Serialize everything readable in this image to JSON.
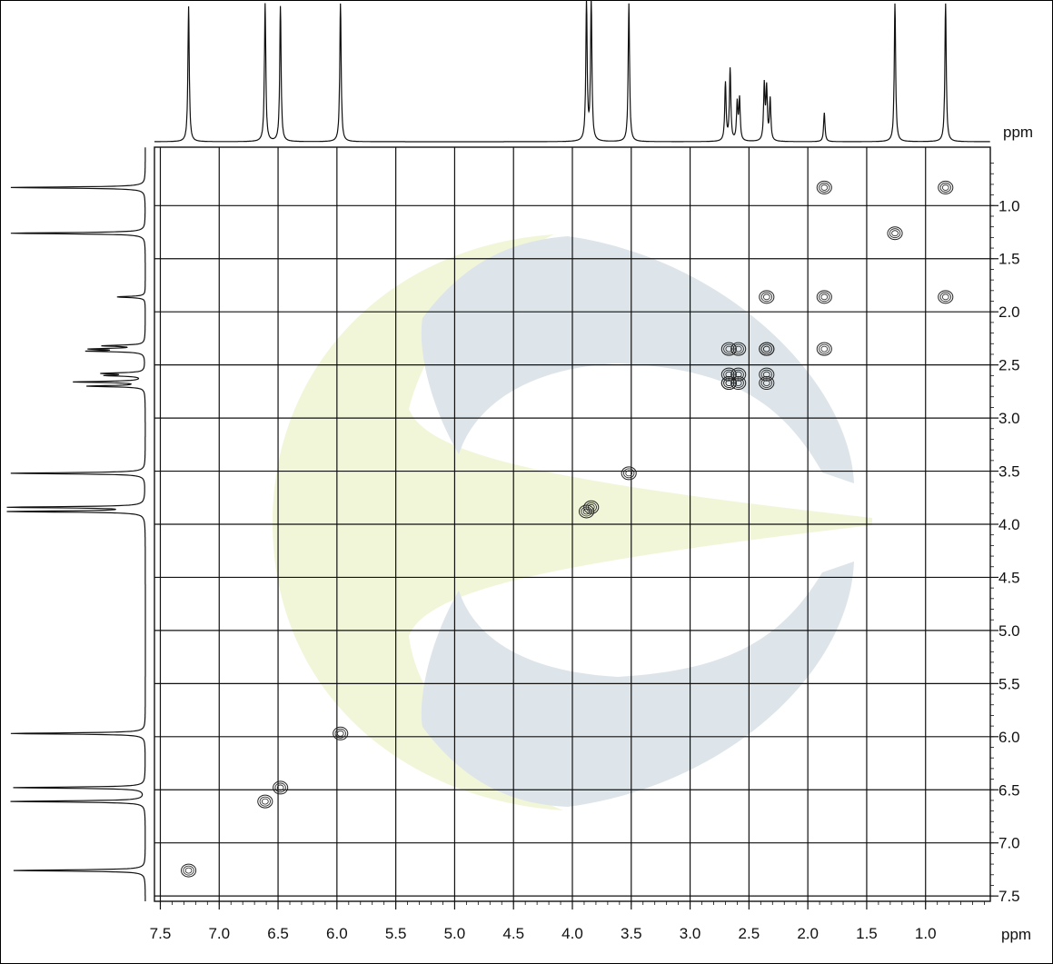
{
  "chart_data": {
    "type": "contour",
    "x": {
      "label": "ppm",
      "ticks": [
        7.5,
        7.0,
        6.5,
        6.0,
        5.5,
        5.0,
        4.5,
        4.0,
        3.5,
        3.0,
        2.5,
        2.0,
        1.5,
        1.0
      ],
      "range": [
        7.55,
        0.45
      ]
    },
    "y": {
      "label": "ppm",
      "ticks": [
        1.0,
        1.5,
        2.0,
        2.5,
        3.0,
        3.5,
        4.0,
        4.5,
        5.0,
        5.5,
        6.0,
        6.5,
        7.0,
        7.5
      ],
      "range": [
        0.45,
        7.55
      ]
    },
    "grid": true,
    "diagonal_peaks": [
      {
        "x": 7.26,
        "y": 7.26
      },
      {
        "x": 6.61,
        "y": 6.61
      },
      {
        "x": 6.48,
        "y": 6.48
      },
      {
        "x": 5.97,
        "y": 5.97
      },
      {
        "x": 3.88,
        "y": 3.88
      },
      {
        "x": 3.84,
        "y": 3.84
      },
      {
        "x": 3.52,
        "y": 3.52
      },
      {
        "x": 2.67,
        "y": 2.67
      },
      {
        "x": 2.59,
        "y": 2.59
      },
      {
        "x": 2.35,
        "y": 2.35
      },
      {
        "x": 1.86,
        "y": 1.86
      },
      {
        "x": 1.26,
        "y": 1.26
      },
      {
        "x": 0.83,
        "y": 0.83
      }
    ],
    "cross_peaks": [
      {
        "x": 1.86,
        "y": 0.83
      },
      {
        "x": 0.83,
        "y": 1.86
      },
      {
        "x": 2.35,
        "y": 1.86
      },
      {
        "x": 1.86,
        "y": 2.35
      },
      {
        "x": 2.35,
        "y": 2.35
      },
      {
        "x": 2.59,
        "y": 2.35
      },
      {
        "x": 2.67,
        "y": 2.35
      },
      {
        "x": 2.67,
        "y": 2.59
      },
      {
        "x": 2.67,
        "y": 2.67
      },
      {
        "x": 2.59,
        "y": 2.67
      },
      {
        "x": 2.35,
        "y": 2.59
      },
      {
        "x": 2.35,
        "y": 2.67
      }
    ],
    "projection_1d_peaks": [
      {
        "ppm": 7.26,
        "intensity": 0.98
      },
      {
        "ppm": 6.61,
        "intensity": 1.0
      },
      {
        "ppm": 6.48,
        "intensity": 0.98
      },
      {
        "ppm": 5.97,
        "intensity": 1.0
      },
      {
        "ppm": 3.88,
        "intensity": 1.0
      },
      {
        "ppm": 3.84,
        "intensity": 1.0
      },
      {
        "ppm": 3.52,
        "intensity": 1.0
      },
      {
        "ppm": 2.7,
        "intensity": 0.42
      },
      {
        "ppm": 2.66,
        "intensity": 0.52
      },
      {
        "ppm": 2.6,
        "intensity": 0.27
      },
      {
        "ppm": 2.58,
        "intensity": 0.3
      },
      {
        "ppm": 2.37,
        "intensity": 0.4
      },
      {
        "ppm": 2.35,
        "intensity": 0.37
      },
      {
        "ppm": 2.32,
        "intensity": 0.3
      },
      {
        "ppm": 1.86,
        "intensity": 0.21
      },
      {
        "ppm": 1.26,
        "intensity": 1.0
      },
      {
        "ppm": 0.83,
        "intensity": 1.0
      }
    ]
  }
}
